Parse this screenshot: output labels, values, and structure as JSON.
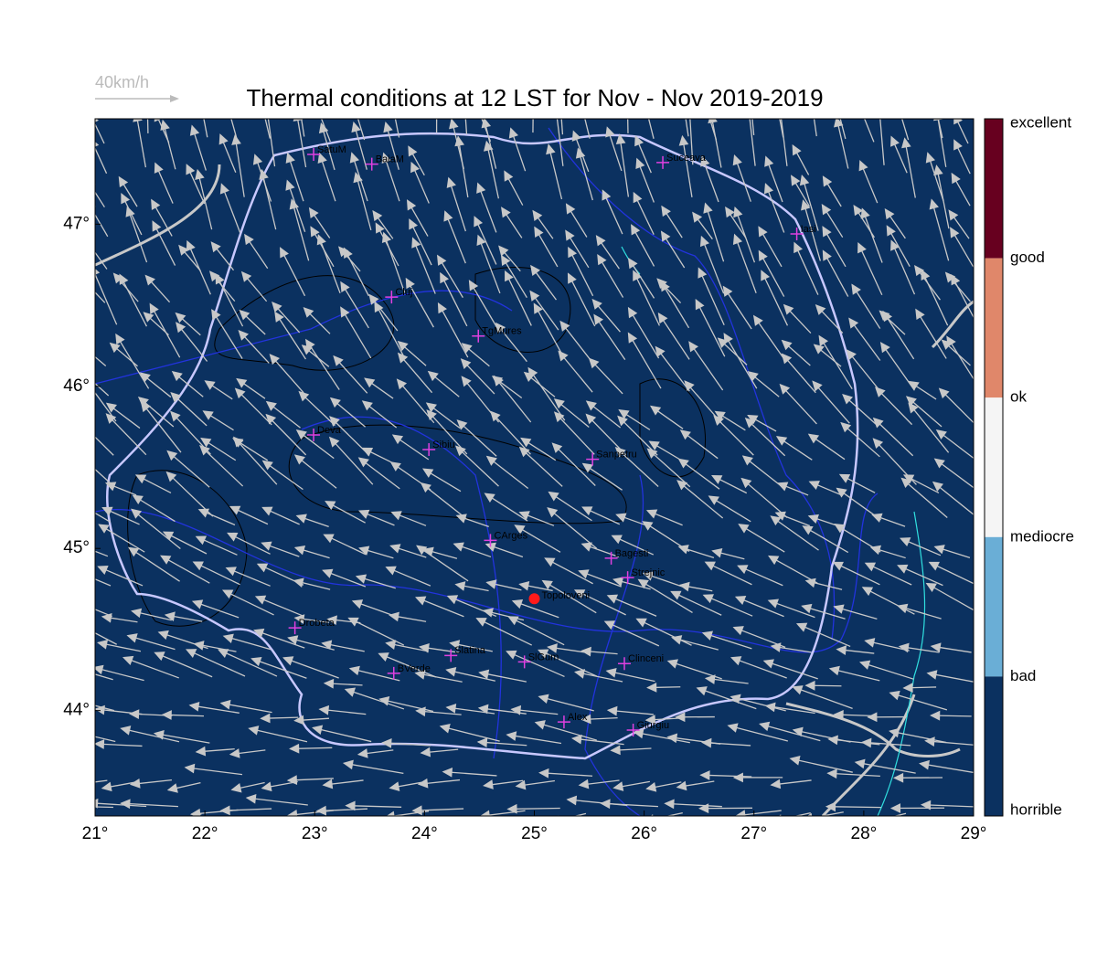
{
  "map": {
    "title": "Thermal conditions at 12 LST for Nov - Nov  2019-2019",
    "scale_label": "40km/h",
    "background_color": "#0b3160",
    "lonlim": [
      21,
      29
    ],
    "latlim": [
      43.35,
      47.65
    ],
    "lonticks": [
      {
        "value": 21,
        "label": "21°"
      },
      {
        "value": 22,
        "label": "22°"
      },
      {
        "value": 23,
        "label": "23°"
      },
      {
        "value": 24,
        "label": "24°"
      },
      {
        "value": 25,
        "label": "25°"
      },
      {
        "value": 26,
        "label": "26°"
      },
      {
        "value": 27,
        "label": "27°"
      },
      {
        "value": 28,
        "label": "28°"
      },
      {
        "value": 29,
        "label": "29°"
      }
    ],
    "latticks": [
      {
        "value": 44,
        "label": "44°"
      },
      {
        "value": 45,
        "label": "45°"
      },
      {
        "value": 46,
        "label": "46°"
      },
      {
        "value": 47,
        "label": "47°"
      }
    ],
    "cities": [
      {
        "name": "SatuM",
        "lon": 22.99,
        "lat": 47.43
      },
      {
        "name": "BaiaM",
        "lon": 23.52,
        "lat": 47.37
      },
      {
        "name": "Suceava",
        "lon": 26.17,
        "lat": 47.38
      },
      {
        "name": "Iasi",
        "lon": 27.39,
        "lat": 46.94
      },
      {
        "name": "Cluj",
        "lon": 23.7,
        "lat": 46.55
      },
      {
        "name": "TgMures",
        "lon": 24.49,
        "lat": 46.31
      },
      {
        "name": "Deva",
        "lon": 22.99,
        "lat": 45.7
      },
      {
        "name": "Sibiu",
        "lon": 24.04,
        "lat": 45.61
      },
      {
        "name": "Sanpetru",
        "lon": 25.53,
        "lat": 45.55
      },
      {
        "name": "CArges",
        "lon": 24.6,
        "lat": 45.05
      },
      {
        "name": "Bagesti",
        "lon": 25.7,
        "lat": 44.94
      },
      {
        "name": "Strejnic",
        "lon": 25.85,
        "lat": 44.82
      },
      {
        "name": "Drobeta",
        "lon": 22.82,
        "lat": 44.51
      },
      {
        "name": "Slatina",
        "lon": 24.24,
        "lat": 44.34
      },
      {
        "name": "SlGum",
        "lon": 24.91,
        "lat": 44.3
      },
      {
        "name": "Clinceni",
        "lon": 25.82,
        "lat": 44.29
      },
      {
        "name": "BVerde",
        "lon": 23.72,
        "lat": 44.23
      },
      {
        "name": "Alex",
        "lon": 25.27,
        "lat": 43.93
      },
      {
        "name": "Giurgiu",
        "lon": 25.9,
        "lat": 43.88
      }
    ],
    "site": {
      "name": "Topoloveni",
      "lon": 25.0,
      "lat": 44.69,
      "color": "#ff1a1a"
    },
    "colorbar": {
      "labels": [
        "excellent",
        "good",
        "ok",
        "mediocre",
        "bad",
        "horrible"
      ],
      "colors": [
        "#67001f",
        "#e0876a",
        "#f5f5f5",
        "#6aaed6",
        "#0b3160"
      ]
    }
  }
}
